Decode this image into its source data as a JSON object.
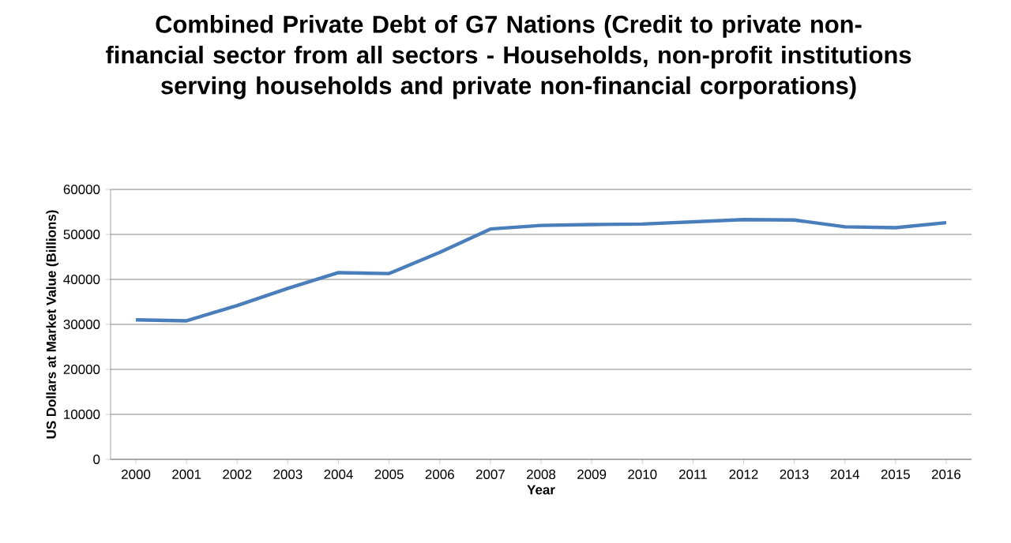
{
  "chart_data": {
    "type": "line",
    "title": "Combined Private Debt of G7 Nations (Credit to private non-financial sector from all sectors -  Households, non-profit institutions serving households and private non-financial corporations)",
    "xlabel": "Year",
    "ylabel": "US Dollars at Market Value (Billions)",
    "categories": [
      "2000",
      "2001",
      "2002",
      "2003",
      "2004",
      "2005",
      "2006",
      "2007",
      "2008",
      "2009",
      "2010",
      "2011",
      "2012",
      "2013",
      "2014",
      "2015",
      "2016"
    ],
    "series": [
      {
        "color": "#4a7ebb",
        "values": [
          31000,
          30800,
          34200,
          38000,
          41500,
          41300,
          46000,
          51200,
          52000,
          52200,
          52300,
          52800,
          53300,
          53200,
          51700,
          51500,
          52600
        ]
      }
    ],
    "ylim": [
      0,
      60000
    ],
    "yticks": [
      0,
      10000,
      20000,
      30000,
      40000,
      50000,
      60000
    ],
    "grid": "y",
    "marker": "none",
    "line_style": "solid"
  }
}
